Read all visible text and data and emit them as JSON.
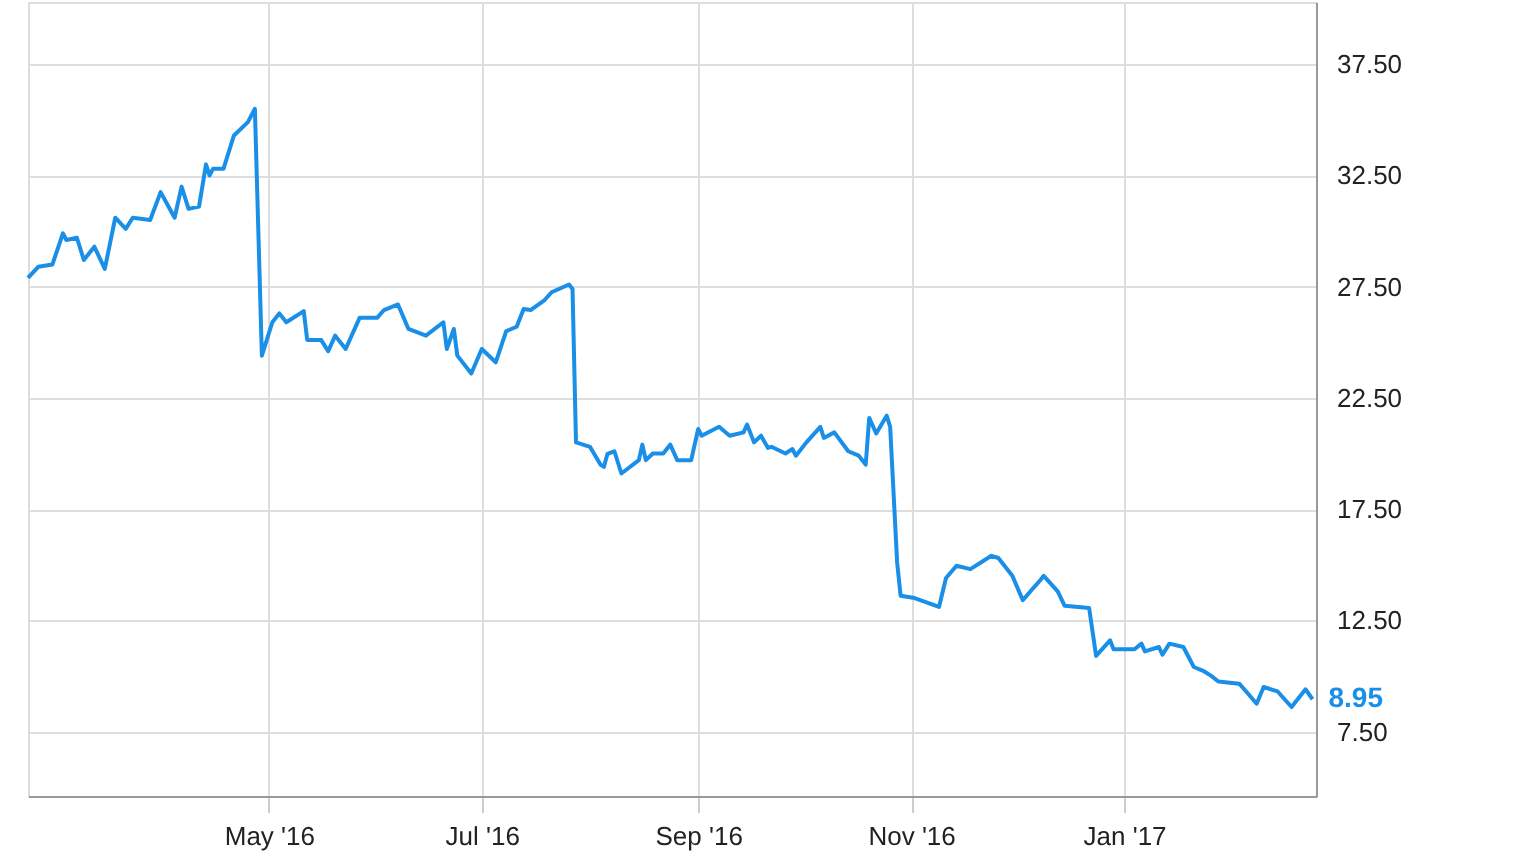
{
  "chart_data": {
    "type": "line",
    "x": [
      "2016-02-22",
      "2016-02-25",
      "2016-02-29",
      "2016-03-03",
      "2016-03-04",
      "2016-03-07",
      "2016-03-09",
      "2016-03-12",
      "2016-03-15",
      "2016-03-18",
      "2016-03-21",
      "2016-03-23",
      "2016-03-28",
      "2016-03-31",
      "2016-04-04",
      "2016-04-06",
      "2016-04-08",
      "2016-04-11",
      "2016-04-13",
      "2016-04-14",
      "2016-04-15",
      "2016-04-18",
      "2016-04-21",
      "2016-04-25",
      "2016-04-27",
      "2016-04-29",
      "2016-05-02",
      "2016-05-04",
      "2016-05-06",
      "2016-05-11",
      "2016-05-12",
      "2016-05-16",
      "2016-05-18",
      "2016-05-20",
      "2016-05-23",
      "2016-05-27",
      "2016-06-01",
      "2016-06-03",
      "2016-06-07",
      "2016-06-10",
      "2016-06-15",
      "2016-06-20",
      "2016-06-21",
      "2016-06-23",
      "2016-06-24",
      "2016-06-28",
      "2016-07-01",
      "2016-07-05",
      "2016-07-08",
      "2016-07-11",
      "2016-07-13",
      "2016-07-15",
      "2016-07-19",
      "2016-07-21",
      "2016-07-26",
      "2016-07-27",
      "2016-07-28",
      "2016-08-01",
      "2016-08-04",
      "2016-08-05",
      "2016-08-06",
      "2016-08-08",
      "2016-08-10",
      "2016-08-15",
      "2016-08-16",
      "2016-08-17",
      "2016-08-19",
      "2016-08-22",
      "2016-08-24",
      "2016-08-26",
      "2016-08-30",
      "2016-09-01",
      "2016-09-02",
      "2016-09-07",
      "2016-09-10",
      "2016-09-14",
      "2016-09-15",
      "2016-09-17",
      "2016-09-19",
      "2016-09-21",
      "2016-09-22",
      "2016-09-26",
      "2016-09-28",
      "2016-09-29",
      "2016-10-02",
      "2016-10-06",
      "2016-10-07",
      "2016-10-10",
      "2016-10-14",
      "2016-10-17",
      "2016-10-19",
      "2016-10-20",
      "2016-10-22",
      "2016-10-25",
      "2016-10-26",
      "2016-10-28",
      "2016-10-29",
      "2016-11-02",
      "2016-11-09",
      "2016-11-11",
      "2016-11-14",
      "2016-11-18",
      "2016-11-19",
      "2016-11-24",
      "2016-11-26",
      "2016-11-30",
      "2016-12-03",
      "2016-12-06",
      "2016-12-08",
      "2016-12-09",
      "2016-12-13",
      "2016-12-15",
      "2016-12-22",
      "2016-12-24",
      "2016-12-28",
      "2016-12-29",
      "2017-01-04",
      "2017-01-06",
      "2017-01-07",
      "2017-01-11",
      "2017-01-12",
      "2017-01-14",
      "2017-01-18",
      "2017-01-21",
      "2017-01-24",
      "2017-01-26",
      "2017-01-28",
      "2017-02-03",
      "2017-02-05",
      "2017-02-08",
      "2017-02-10",
      "2017-02-14",
      "2017-02-18",
      "2017-02-22",
      "2017-02-24"
    ],
    "series": [
      {
        "color": "#1a8fe8",
        "values": [
          27.9,
          28.4,
          28.5,
          29.9,
          29.6,
          29.7,
          28.7,
          29.3,
          28.3,
          30.6,
          30.1,
          30.6,
          30.5,
          31.75,
          30.6,
          32.0,
          31.0,
          31.1,
          33.0,
          32.5,
          32.8,
          32.8,
          34.3,
          34.9,
          35.5,
          24.4,
          25.9,
          26.3,
          25.9,
          26.4,
          25.1,
          25.1,
          24.6,
          25.3,
          24.7,
          26.1,
          26.1,
          26.45,
          26.7,
          25.6,
          25.3,
          25.9,
          24.7,
          25.6,
          24.4,
          23.6,
          24.7,
          24.1,
          25.5,
          25.7,
          26.5,
          26.45,
          26.9,
          27.25,
          27.6,
          27.4,
          20.5,
          20.3,
          19.5,
          19.4,
          19.98,
          20.1,
          19.1,
          19.7,
          20.4,
          19.7,
          20.0,
          20.0,
          20.4,
          19.7,
          19.7,
          21.1,
          20.8,
          21.2,
          20.8,
          20.95,
          21.3,
          20.5,
          20.8,
          20.25,
          20.3,
          20.0,
          20.2,
          19.9,
          20.5,
          21.2,
          20.7,
          20.95,
          20.1,
          19.9,
          19.5,
          21.6,
          20.9,
          21.7,
          21.2,
          15.1,
          13.6,
          13.5,
          13.1,
          14.4,
          14.95,
          14.8,
          14.9,
          15.4,
          15.3,
          14.5,
          13.4,
          13.95,
          14.3,
          14.5,
          13.8,
          13.15,
          13.05,
          10.9,
          11.6,
          11.2,
          11.2,
          11.45,
          11.1,
          11.3,
          10.95,
          11.45,
          11.3,
          10.4,
          10.2,
          10.0,
          9.75,
          9.65,
          9.3,
          8.75,
          9.5,
          9.3,
          8.6,
          9.4,
          8.95
        ]
      }
    ],
    "annotations": [
      {
        "text": "8.95",
        "x": "2017-02-24",
        "y": 8.95
      }
    ],
    "xlim": [
      "2016-02-22",
      "2017-02-25"
    ],
    "xticks": [
      {
        "value": "2016-05-01",
        "label": "May '16"
      },
      {
        "value": "2016-07-01",
        "label": "Jul '16"
      },
      {
        "value": "2016-09-01",
        "label": "Sep '16"
      },
      {
        "value": "2016-11-01",
        "label": "Nov '16"
      },
      {
        "value": "2017-01-01",
        "label": "Jan '17"
      }
    ],
    "ylim": [
      4.6,
      40.3
    ],
    "yticks": [
      {
        "value": 7.5,
        "label": "7.50"
      },
      {
        "value": 12.5,
        "label": "12.50"
      },
      {
        "value": 17.5,
        "label": "17.50"
      },
      {
        "value": 22.5,
        "label": "22.50"
      },
      {
        "value": 27.5,
        "label": "27.50"
      },
      {
        "value": 32.5,
        "label": "32.50"
      },
      {
        "value": 37.5,
        "label": "37.50"
      }
    ],
    "grid": true,
    "marker": "none",
    "line_style": "solid"
  }
}
